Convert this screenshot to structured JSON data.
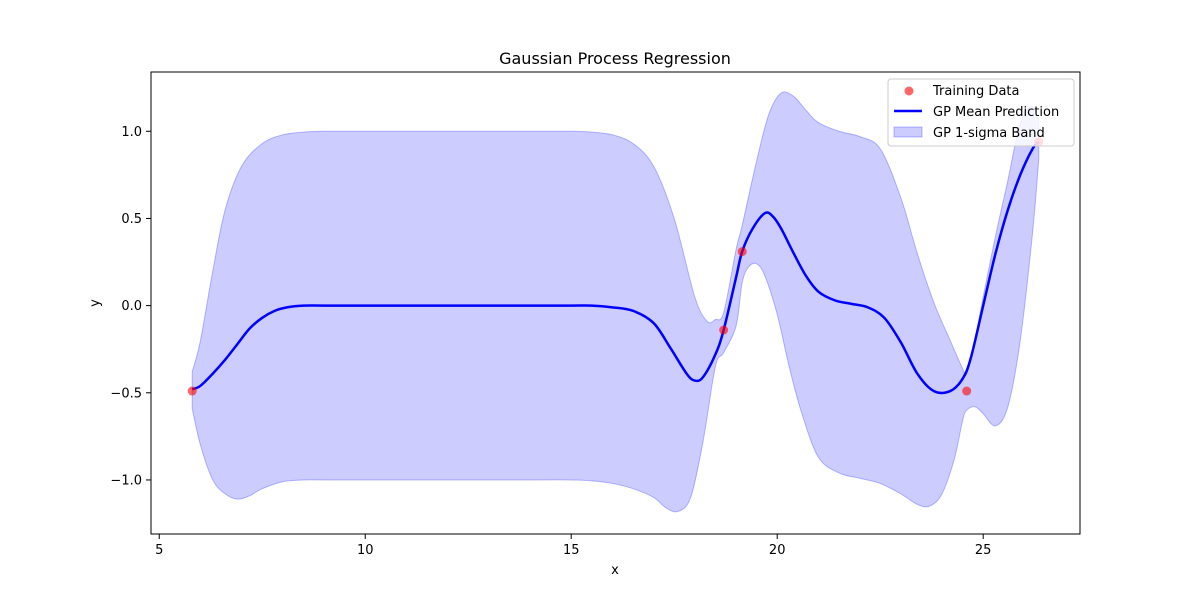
{
  "chart_data": {
    "type": "line",
    "title": "Gaussian Process Regression",
    "xlabel": "x",
    "ylabel": "y",
    "xlim": [
      4.8,
      27.35
    ],
    "ylim": [
      -1.31,
      1.34
    ],
    "xticks": [
      5,
      10,
      15,
      20,
      25
    ],
    "xtick_labels": [
      "5",
      "10",
      "15",
      "20",
      "25"
    ],
    "yticks": [
      -1.0,
      -0.5,
      0.0,
      0.5,
      1.0
    ],
    "ytick_labels": [
      "−1.0",
      "−0.5",
      "0.0",
      "0.5",
      "1.0"
    ],
    "grid": false,
    "legend_position": "top-right",
    "legend": [
      {
        "label": "Training Data",
        "kind": "scatter"
      },
      {
        "label": "GP Mean Prediction",
        "kind": "line"
      },
      {
        "label": "GP 1-sigma Band",
        "kind": "band"
      }
    ],
    "colors": {
      "training": "#ff0000",
      "training_alpha": 0.6,
      "mean": "#0000ff",
      "band": "#0000ff",
      "band_alpha": 0.2
    },
    "training_data": {
      "x": [
        5.8,
        18.7,
        19.15,
        24.6,
        26.35
      ],
      "y": [
        -0.49,
        -0.14,
        0.31,
        -0.49,
        0.94
      ]
    },
    "mean_prediction": {
      "x": [
        5.8,
        6.0,
        6.3,
        6.6,
        6.9,
        7.2,
        7.5,
        7.8,
        8.1,
        8.5,
        9.0,
        10,
        12,
        14,
        15,
        15.5,
        16,
        16.5,
        17.0,
        17.4,
        17.8,
        18.0,
        18.2,
        18.5,
        18.7,
        19.0,
        19.15,
        19.4,
        19.7,
        19.9,
        20.1,
        20.4,
        20.7,
        21.0,
        21.4,
        21.8,
        22.2,
        22.6,
        23.0,
        23.4,
        23.8,
        24.2,
        24.5,
        24.7,
        25.0,
        25.3,
        25.6,
        25.9,
        26.2,
        26.35
      ],
      "y": [
        -0.48,
        -0.46,
        -0.39,
        -0.31,
        -0.22,
        -0.13,
        -0.07,
        -0.03,
        -0.01,
        0.0,
        0.0,
        0.0,
        0.0,
        0.0,
        0.0,
        0.0,
        -0.01,
        -0.03,
        -0.1,
        -0.24,
        -0.39,
        -0.43,
        -0.41,
        -0.28,
        -0.14,
        0.16,
        0.31,
        0.44,
        0.53,
        0.51,
        0.44,
        0.3,
        0.17,
        0.08,
        0.03,
        0.01,
        -0.01,
        -0.07,
        -0.21,
        -0.39,
        -0.49,
        -0.49,
        -0.42,
        -0.3,
        0.0,
        0.3,
        0.55,
        0.75,
        0.9,
        0.94
      ]
    },
    "band_upper": {
      "x": [
        5.8,
        6.0,
        6.3,
        6.6,
        7.0,
        7.5,
        8.0,
        8.5,
        9.0,
        10,
        12,
        14,
        15,
        15.5,
        16.0,
        16.5,
        17.0,
        17.5,
        18.0,
        18.3,
        18.5,
        18.7,
        19.0,
        19.15,
        19.5,
        19.8,
        20.1,
        20.4,
        20.7,
        21.0,
        21.5,
        22.0,
        22.5,
        23.0,
        23.4,
        23.8,
        24.2,
        24.5,
        24.6,
        24.8,
        25.0,
        25.3,
        25.6,
        25.8,
        26.0,
        26.2,
        26.35
      ],
      "y": [
        -0.38,
        -0.2,
        0.2,
        0.55,
        0.8,
        0.93,
        0.98,
        0.995,
        1.0,
        1.0,
        1.0,
        1.0,
        1.0,
        0.995,
        0.98,
        0.93,
        0.8,
        0.5,
        0.05,
        -0.09,
        -0.08,
        -0.04,
        0.32,
        0.46,
        0.83,
        1.1,
        1.22,
        1.2,
        1.12,
        1.05,
        1.0,
        0.97,
        0.9,
        0.62,
        0.3,
        0.02,
        -0.2,
        -0.36,
        -0.39,
        -0.2,
        0.05,
        0.4,
        0.72,
        0.95,
        1.1,
        1.14,
        1.06
      ]
    },
    "band_lower": {
      "x": [
        5.8,
        6.0,
        6.3,
        6.6,
        6.9,
        7.2,
        7.5,
        8.0,
        8.5,
        9.0,
        10,
        12,
        14,
        15,
        15.5,
        16.0,
        16.5,
        17.0,
        17.3,
        17.6,
        17.9,
        18.2,
        18.5,
        18.7,
        19.0,
        19.15,
        19.3,
        19.5,
        19.7,
        20.0,
        20.3,
        20.6,
        21.0,
        21.5,
        22.0,
        22.5,
        23.0,
        23.4,
        23.7,
        24.0,
        24.3,
        24.5,
        24.6,
        24.8,
        25.0,
        25.3,
        25.6,
        25.9,
        26.2,
        26.35
      ],
      "y": [
        -0.59,
        -0.8,
        -1.0,
        -1.08,
        -1.11,
        -1.09,
        -1.05,
        -1.01,
        -1.0,
        -1.0,
        -1.0,
        -1.0,
        -1.0,
        -1.0,
        -1.005,
        -1.02,
        -1.05,
        -1.1,
        -1.16,
        -1.18,
        -1.1,
        -0.78,
        -0.35,
        -0.27,
        -0.12,
        0.13,
        0.22,
        0.24,
        0.17,
        -0.05,
        -0.36,
        -0.62,
        -0.87,
        -0.96,
        -0.99,
        -1.02,
        -1.08,
        -1.14,
        -1.15,
        -1.08,
        -0.88,
        -0.66,
        -0.6,
        -0.58,
        -0.62,
        -0.69,
        -0.58,
        -0.2,
        0.42,
        0.84
      ]
    }
  }
}
